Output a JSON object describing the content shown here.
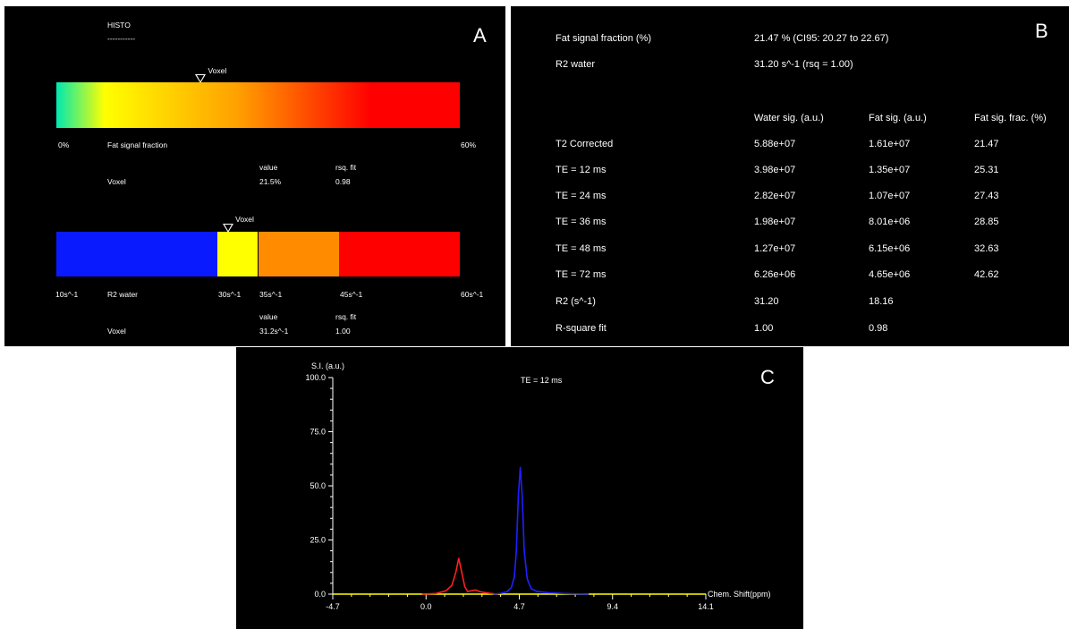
{
  "panel_a": {
    "letter": "A",
    "histo_title": "HISTO",
    "histo_underline": "-----------",
    "fat_bar": {
      "marker_label": "Voxel",
      "marker_fraction": 0.358,
      "gradient_colors": [
        "#00e8b0",
        "#ffff00",
        "#ffa000",
        "#ff0000"
      ],
      "min_label": "0%",
      "axis_label": "Fat signal fraction",
      "max_label": "60%",
      "value_header": "value",
      "rsq_header": "rsq. fit",
      "row_label": "Voxel",
      "row_value": "21.5%",
      "row_rsq": "0.98"
    },
    "r2_bar": {
      "marker_label": "Voxel",
      "marker_fraction": 0.426,
      "segments": [
        {
          "color": "#0a1aff",
          "fraction": 0.4
        },
        {
          "color": "#ffff00",
          "fraction": 0.1
        },
        {
          "color": "#ff8c00",
          "fraction": 0.2
        },
        {
          "color": "#ff0000",
          "fraction": 0.3
        }
      ],
      "tick_labels": [
        "10s^-1",
        "30s^-1",
        "35s^-1",
        "45s^-1",
        "60s^-1"
      ],
      "axis_label": "R2 water",
      "value_header": "value",
      "rsq_header": "rsq. fit",
      "row_label": "Voxel",
      "row_value": "31.2s^-1",
      "row_rsq": "1.00"
    }
  },
  "panel_b": {
    "letter": "B",
    "summary": [
      {
        "label": "Fat signal fraction (%)",
        "value": "21.47 % (CI95: 20.27 to 22.67)"
      },
      {
        "label": "R2 water",
        "value": "31.20 s^-1 (rsq = 1.00)"
      }
    ],
    "columns": [
      "Water sig. (a.u.)",
      "Fat sig. (a.u.)",
      "Fat sig. frac. (%)"
    ],
    "rows": [
      {
        "label": "T2 Corrected",
        "cells": [
          "5.88e+07",
          "1.61e+07",
          "21.47"
        ]
      },
      {
        "label": "TE = 12 ms",
        "cells": [
          "3.98e+07",
          "1.35e+07",
          "25.31"
        ]
      },
      {
        "label": "TE = 24 ms",
        "cells": [
          "2.82e+07",
          "1.07e+07",
          "27.43"
        ]
      },
      {
        "label": "TE = 36 ms",
        "cells": [
          "1.98e+07",
          "8.01e+06",
          "28.85"
        ]
      },
      {
        "label": "TE = 48 ms",
        "cells": [
          "1.27e+07",
          "6.15e+06",
          "32.63"
        ]
      },
      {
        "label": "TE = 72 ms",
        "cells": [
          "6.26e+06",
          "4.65e+06",
          "42.62"
        ]
      },
      {
        "label": "R2 (s^-1)",
        "cells": [
          "31.20",
          "18.16",
          ""
        ]
      },
      {
        "label": "R-square fit",
        "cells": [
          "1.00",
          "0.98",
          ""
        ]
      }
    ]
  },
  "panel_c": {
    "letter": "C",
    "y_axis_title": "S.I. (a.u.)",
    "x_axis_title": "Chem. Shift(ppm)",
    "annotation": "TE = 12 ms",
    "colors": {
      "axis": "#ffffff",
      "baseline": "#ffff00",
      "fat": "#ff2020",
      "water": "#2020ff"
    }
  },
  "chart_data": {
    "type": "line",
    "title": "",
    "annotation": "TE = 12 ms",
    "xlabel": "Chem. Shift(ppm)",
    "ylabel": "S.I. (a.u.)",
    "xlim": [
      -4.7,
      14.1
    ],
    "ylim": [
      0,
      100
    ],
    "x_ticks": [
      "-4.7",
      "0.0",
      "4.7",
      "9.4",
      "14.1"
    ],
    "y_ticks": [
      "0.0",
      "25.0",
      "50.0",
      "75.0",
      "100.0"
    ],
    "series": [
      {
        "color": "#ff2020",
        "x": [
          -0.2,
          0.5,
          1.0,
          1.3,
          1.5,
          1.65,
          1.8,
          1.95,
          2.1,
          2.3,
          2.5,
          2.7,
          2.9,
          3.1,
          3.3,
          3.6
        ],
        "y": [
          0,
          0.3,
          1.5,
          4,
          10,
          16.5,
          10,
          3.5,
          1.2,
          1.6,
          1.9,
          1.2,
          0.8,
          0.5,
          0.3,
          0
        ]
      },
      {
        "color": "#2020ff",
        "x": [
          3.4,
          3.8,
          4.1,
          4.3,
          4.45,
          4.55,
          4.65,
          4.75,
          4.85,
          4.95,
          5.1,
          5.3,
          5.6,
          6.2,
          7.0,
          8.2
        ],
        "y": [
          0,
          0.4,
          1.2,
          3,
          8,
          20,
          45,
          58.5,
          45,
          20,
          7,
          2.5,
          1.2,
          0.6,
          0.3,
          0
        ]
      },
      {
        "color": "#ffff00",
        "x": [
          -4.7,
          -0.2,
          8.2,
          14.1
        ],
        "y": [
          0,
          0,
          0,
          0
        ]
      }
    ]
  }
}
